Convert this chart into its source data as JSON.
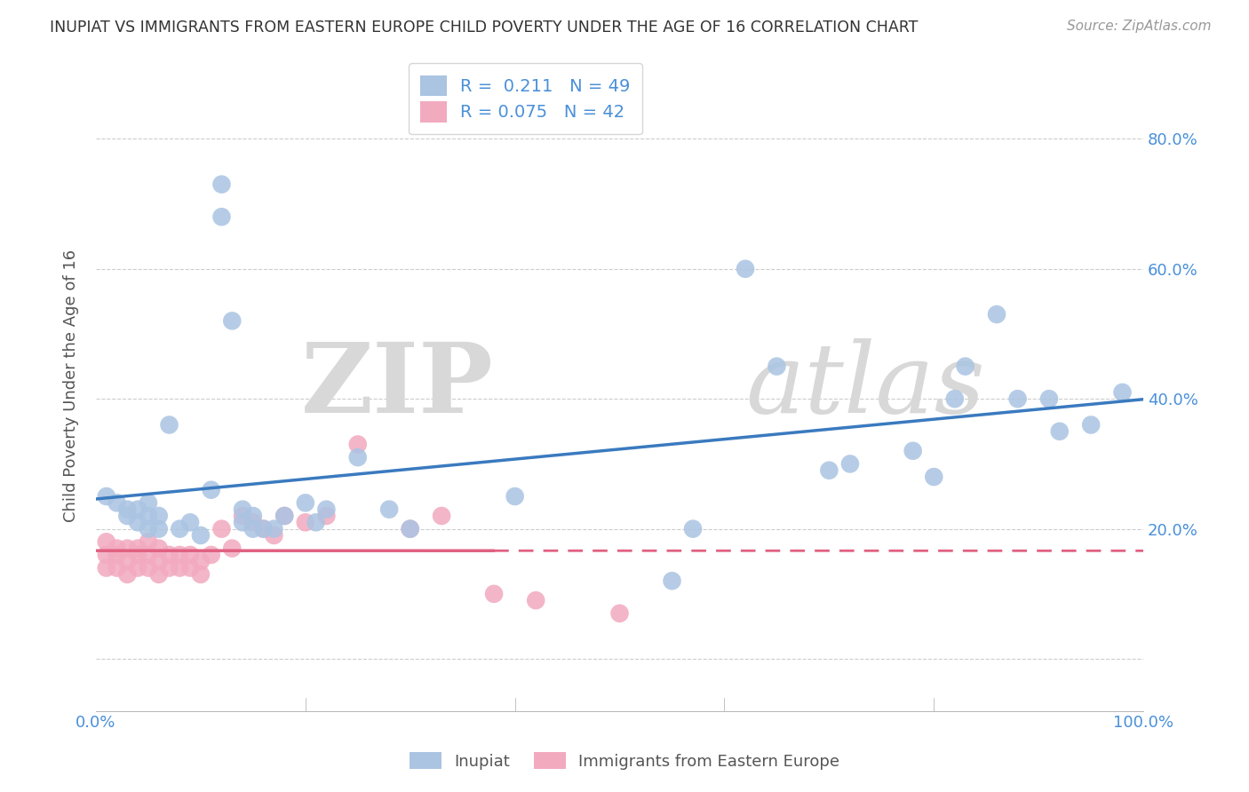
{
  "title": "INUPIAT VS IMMIGRANTS FROM EASTERN EUROPE CHILD POVERTY UNDER THE AGE OF 16 CORRELATION CHART",
  "source": "Source: ZipAtlas.com",
  "ylabel": "Child Poverty Under the Age of 16",
  "xlim": [
    0.0,
    1.0
  ],
  "ylim": [
    -0.08,
    0.92
  ],
  "xticks": [
    0.0,
    0.2,
    0.4,
    0.6,
    0.8,
    1.0
  ],
  "xticklabels": [
    "0.0%",
    "",
    "",
    "",
    "",
    "100.0%"
  ],
  "ytick_positions": [
    0.0,
    0.2,
    0.4,
    0.6,
    0.8
  ],
  "yticklabels_right": [
    "",
    "20.0%",
    "40.0%",
    "60.0%",
    "80.0%"
  ],
  "legend1_R": "0.211",
  "legend1_N": "49",
  "legend2_R": "0.075",
  "legend2_N": "42",
  "blue_color": "#aac4e2",
  "pink_color": "#f2aabf",
  "blue_line_color": "#3a7abf",
  "pink_line_color": "#e06080",
  "watermark_zip": "ZIP",
  "watermark_atlas": "atlas",
  "inupiat_x": [
    0.01,
    0.02,
    0.03,
    0.03,
    0.04,
    0.04,
    0.05,
    0.05,
    0.05,
    0.06,
    0.06,
    0.07,
    0.08,
    0.09,
    0.1,
    0.11,
    0.12,
    0.12,
    0.13,
    0.14,
    0.14,
    0.15,
    0.15,
    0.16,
    0.17,
    0.18,
    0.2,
    0.21,
    0.22,
    0.25,
    0.28,
    0.3,
    0.4,
    0.55,
    0.57,
    0.62,
    0.65,
    0.7,
    0.72,
    0.78,
    0.8,
    0.82,
    0.83,
    0.86,
    0.88,
    0.91,
    0.92,
    0.95,
    0.98
  ],
  "inupiat_y": [
    0.25,
    0.24,
    0.23,
    0.22,
    0.21,
    0.23,
    0.2,
    0.22,
    0.24,
    0.2,
    0.22,
    0.36,
    0.2,
    0.21,
    0.19,
    0.26,
    0.73,
    0.68,
    0.52,
    0.21,
    0.23,
    0.2,
    0.22,
    0.2,
    0.2,
    0.22,
    0.24,
    0.21,
    0.23,
    0.31,
    0.23,
    0.2,
    0.25,
    0.12,
    0.2,
    0.6,
    0.45,
    0.29,
    0.3,
    0.32,
    0.28,
    0.4,
    0.45,
    0.53,
    0.4,
    0.4,
    0.35,
    0.36,
    0.41
  ],
  "eastern_europe_x": [
    0.01,
    0.01,
    0.01,
    0.02,
    0.02,
    0.02,
    0.03,
    0.03,
    0.03,
    0.04,
    0.04,
    0.04,
    0.05,
    0.05,
    0.05,
    0.06,
    0.06,
    0.06,
    0.07,
    0.07,
    0.08,
    0.08,
    0.09,
    0.09,
    0.1,
    0.1,
    0.11,
    0.12,
    0.13,
    0.14,
    0.15,
    0.16,
    0.17,
    0.18,
    0.2,
    0.22,
    0.25,
    0.3,
    0.33,
    0.38,
    0.42,
    0.5
  ],
  "eastern_europe_y": [
    0.14,
    0.16,
    0.18,
    0.14,
    0.16,
    0.17,
    0.13,
    0.15,
    0.17,
    0.14,
    0.16,
    0.17,
    0.14,
    0.16,
    0.18,
    0.13,
    0.15,
    0.17,
    0.14,
    0.16,
    0.14,
    0.16,
    0.14,
    0.16,
    0.13,
    0.15,
    0.16,
    0.2,
    0.17,
    0.22,
    0.21,
    0.2,
    0.19,
    0.22,
    0.21,
    0.22,
    0.33,
    0.2,
    0.22,
    0.1,
    0.09,
    0.07
  ]
}
